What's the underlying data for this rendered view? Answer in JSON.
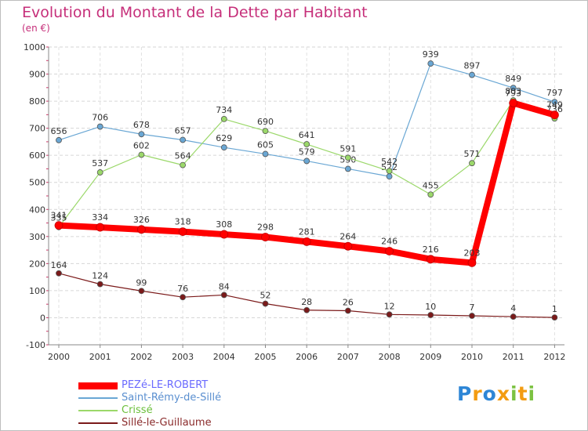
{
  "chart_data": {
    "type": "line",
    "title": "Evolution du Montant de la Dette par Habitant",
    "unit": "(en €)",
    "x": [
      "2000",
      "2001",
      "2002",
      "2003",
      "2004",
      "2005",
      "2006",
      "2007",
      "2008",
      "2009",
      "2010",
      "2011",
      "2012"
    ],
    "ylim": [
      -100,
      1000
    ],
    "yticks": [
      -100,
      0,
      100,
      200,
      300,
      400,
      500,
      600,
      700,
      800,
      900,
      1000
    ],
    "grid": true,
    "legend_position": "bottom-left",
    "series": [
      {
        "name": "Sillé-le-Guillaume",
        "color": "#7b1a1a",
        "values": [
          164,
          124,
          99,
          76,
          84,
          52,
          28,
          26,
          12,
          10,
          7,
          4,
          1
        ]
      },
      {
        "name": "Saint-Rémy-de-Sillé",
        "color": "#6aa7d4",
        "values": [
          656,
          706,
          678,
          657,
          629,
          605,
          579,
          550,
          522,
          939,
          897,
          849,
          797
        ]
      },
      {
        "name": "Crissé",
        "color": "#9bd86a",
        "values": [
          335,
          537,
          602,
          564,
          734,
          690,
          641,
          591,
          542,
          455,
          571,
          803,
          736
        ]
      },
      {
        "name": "PEZé-LE-ROBERT",
        "color": "#ff0000",
        "values": [
          341,
          334,
          326,
          318,
          308,
          298,
          281,
          264,
          246,
          216,
          203,
          793,
          749
        ]
      }
    ],
    "legend_order": [
      "PEZé-LE-ROBERT",
      "Saint-Rémy-de-Sillé",
      "Crissé",
      "Sillé-le-Guillaume"
    ]
  },
  "logo": {
    "letters": [
      "P",
      "r",
      "o",
      "x",
      "i",
      "t",
      "i"
    ],
    "colors": [
      "#2e86d6",
      "#f39c12",
      "#2e86d6",
      "#f39c12",
      "#7cc242",
      "#f39c12",
      "#7cc242"
    ]
  }
}
